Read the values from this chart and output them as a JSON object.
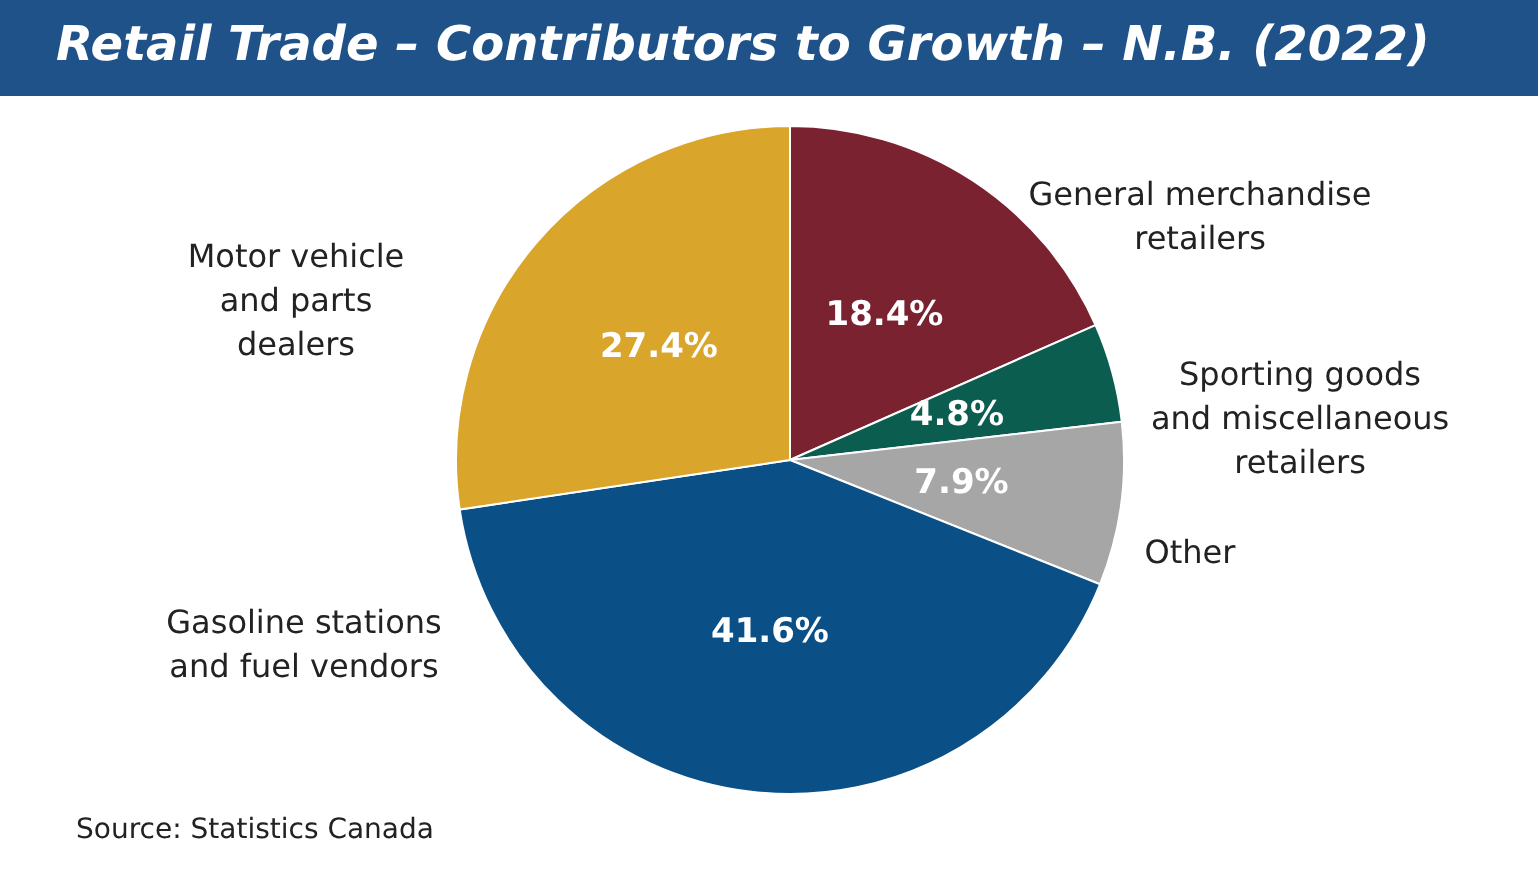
{
  "chart_data": {
    "type": "pie",
    "title": "Retail Trade – Contributors to Growth – N.B. (2022)",
    "categories": [
      "General merchandise\nretailers",
      "Sporting goods\nand miscellaneous\nretailers",
      "Other",
      "Gasoline stations\nand fuel vendors",
      "Motor vehicle\nand parts\ndealers"
    ],
    "values": [
      18.4,
      4.8,
      7.9,
      41.6,
      27.4
    ],
    "value_labels": [
      "18.4%",
      "4.8%",
      "7.9%",
      "41.6%",
      "27.4%"
    ],
    "colors": [
      "#7b2230",
      "#0b5e4f",
      "#a6a6a6",
      "#0a4f86",
      "#d9a52a"
    ],
    "annotations": [
      "Source: Statistics Canada"
    ],
    "legend": false
  }
}
